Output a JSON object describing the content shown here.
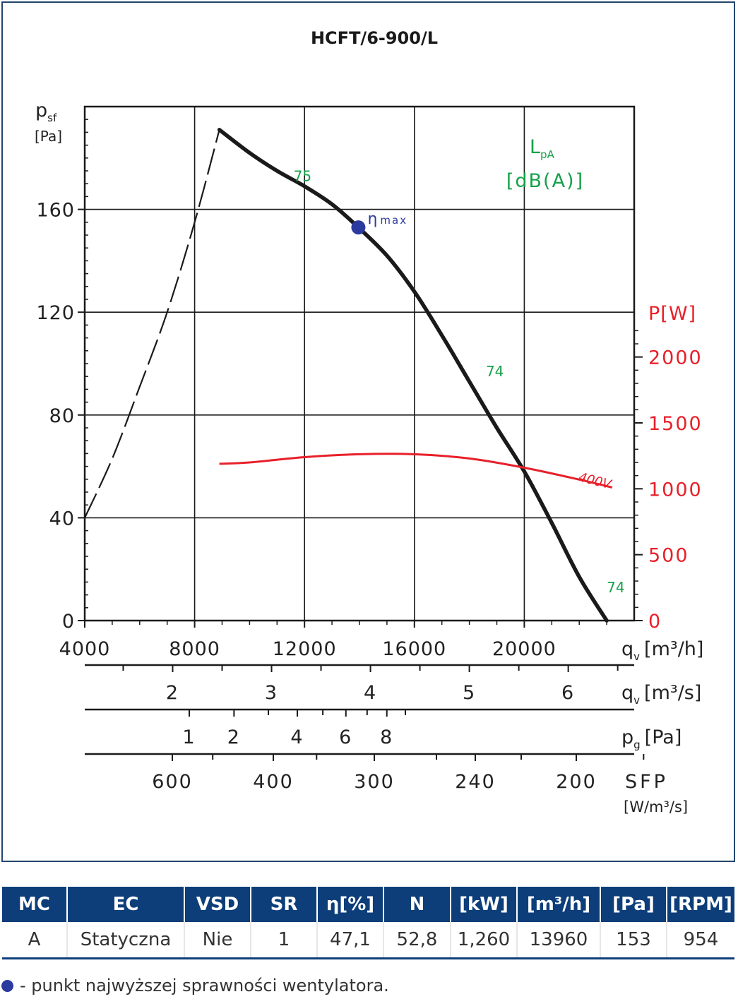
{
  "chart_data": {
    "type": "line",
    "title": "HCFT/6-900/L",
    "y_label_main": "p",
    "y_label_sub": "sf",
    "y_label_unit": "[Pa]",
    "ylim": [
      0,
      200
    ],
    "xlim": [
      4000,
      23300
    ],
    "y_ticks": [
      "0",
      "40",
      "80",
      "120",
      "160"
    ],
    "x_ticks": [
      "4000",
      "8000",
      "12000",
      "16000",
      "20000"
    ],
    "x_label": "q",
    "x_label_sub": "v",
    "x_label_unit": "[m³/h]",
    "y2_label": "P[W]",
    "y2_ticks": [
      "0",
      "500",
      "1000",
      "1500",
      "2000"
    ],
    "y2lim": [
      0,
      3900
    ],
    "sound_label_main": "L",
    "sound_label_sub": "pA",
    "sound_label_unit": "[dB(A)]",
    "series": [
      {
        "kind": "pressure",
        "x": [
          8900,
          10000,
          11000,
          12000,
          13000,
          13960,
          15000,
          16000,
          17000,
          18000,
          19000,
          20000,
          21000,
          22000,
          23000
        ],
        "y": [
          191,
          182,
          175,
          169,
          162,
          153,
          142,
          128,
          111,
          93,
          75,
          58,
          38,
          17,
          0
        ]
      },
      {
        "kind": "pressure-unstable",
        "x": [
          4000,
          5000,
          6000,
          7000,
          8000,
          8900
        ],
        "y": [
          40,
          63,
          91,
          120,
          155,
          191
        ]
      },
      {
        "name": "400V",
        "kind": "power",
        "x": [
          8900,
          10000,
          12000,
          14000,
          16000,
          18000,
          20000,
          22000,
          23200
        ],
        "y": [
          1190,
          1200,
          1240,
          1262,
          1262,
          1230,
          1160,
          1070,
          1010
        ]
      }
    ],
    "sound_labels": [
      {
        "text": "75",
        "x": 11600,
        "y": 171
      },
      {
        "text": "74",
        "x": 18600,
        "y": 95
      },
      {
        "text": "74",
        "x": 23000,
        "y": 11
      }
    ],
    "optimum_point": {
      "x": 13960,
      "y": 153,
      "label_main": "η",
      "label_sub": "max"
    },
    "secondary_scales": [
      {
        "label_main": "q",
        "label_sub": "v",
        "label_unit": "[m³/s]",
        "ticks": [
          {
            "v": 1.5,
            "label": ""
          },
          {
            "v": 2,
            "label": "2"
          },
          {
            "v": 2.5,
            "label": ""
          },
          {
            "v": 3,
            "label": "3"
          },
          {
            "v": 3.5,
            "label": ""
          },
          {
            "v": 4,
            "label": "4"
          },
          {
            "v": 4.5,
            "label": ""
          },
          {
            "v": 5,
            "label": "5"
          },
          {
            "v": 5.5,
            "label": ""
          },
          {
            "v": 6,
            "label": "6"
          },
          {
            "v": 6.5,
            "label": ""
          }
        ]
      },
      {
        "label_main": "p",
        "label_sub": "g",
        "label_unit": "[Pa]",
        "ticks": [
          {
            "v": 1,
            "label": "1"
          },
          {
            "v": 2,
            "label": "2"
          },
          {
            "v": 3,
            "label": ""
          },
          {
            "v": 4,
            "label": "4"
          },
          {
            "v": 5,
            "label": ""
          },
          {
            "v": 6,
            "label": "6"
          },
          {
            "v": 7,
            "label": ""
          },
          {
            "v": 8,
            "label": "8"
          },
          {
            "v": 9,
            "label": ""
          }
        ]
      },
      {
        "label_main": "SFP",
        "label_unit": "[W/m³/s]",
        "ticks": [
          {
            "v": 600,
            "label": "600"
          },
          {
            "v": 500,
            "label": ""
          },
          {
            "v": 400,
            "label": "400"
          },
          {
            "v": 350,
            "label": ""
          },
          {
            "v": 300,
            "label": "300"
          },
          {
            "v": 260,
            "label": ""
          },
          {
            "v": 240,
            "label": "240"
          },
          {
            "v": 220,
            "label": ""
          },
          {
            "v": 200,
            "label": "200"
          },
          {
            "v": 180,
            "label": ""
          }
        ]
      }
    ],
    "colors": {
      "pressure": "#1a1a1a",
      "power": "#e8202a",
      "sound": "#16a04a",
      "optimum": "#2b3a9e",
      "grid": "#1a1a1a"
    },
    "grid": true
  },
  "table": {
    "headers": [
      "MC",
      "EC",
      "VSD",
      "SR",
      "η[%]",
      "N",
      "[kW]",
      "[m³/h]",
      "[Pa]",
      "[RPM]"
    ],
    "row": [
      "A",
      "Statyczna",
      "Nie",
      "1",
      "47,1",
      "52,8",
      "1,260",
      "13960",
      "153",
      "954"
    ]
  },
  "footnote": "- punkt najwyższej sprawności wentylatora."
}
